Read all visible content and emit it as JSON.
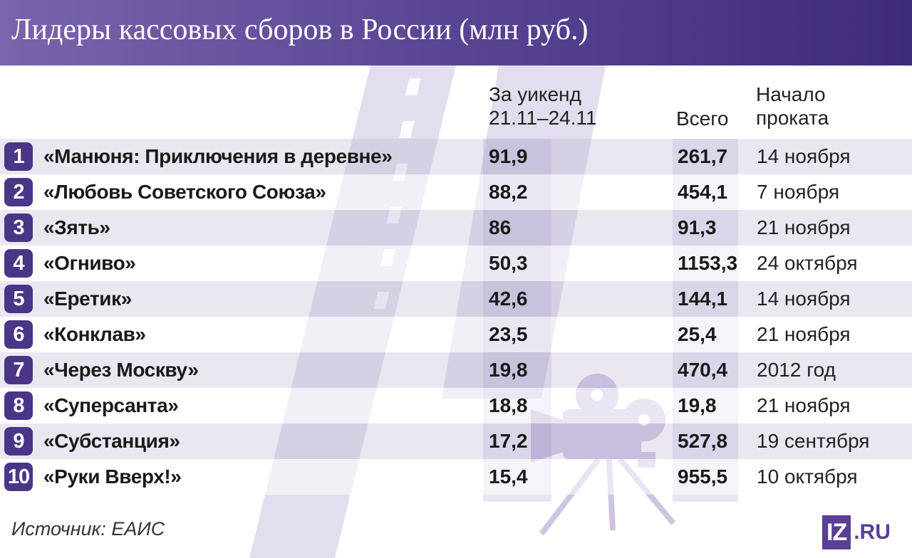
{
  "title": "Лидеры кассовых сборов в России (млн руб.)",
  "columns": {
    "weekend_line1": "За уикенд",
    "weekend_line2": "21.11–24.11",
    "total": "Всего",
    "release_line1": "Начало",
    "release_line2": "проката"
  },
  "rows": [
    {
      "rank": "1",
      "film": "«Манюня: Приключения в деревне»",
      "weekend": "91,9",
      "total": "261,7",
      "release": "14 ноября"
    },
    {
      "rank": "2",
      "film": "«Любовь Советского Союза»",
      "weekend": "88,2",
      "total": "454,1",
      "release": "7 ноября"
    },
    {
      "rank": "3",
      "film": "«Зять»",
      "weekend": "86",
      "total": "91,3",
      "release": "21 ноября"
    },
    {
      "rank": "4",
      "film": "«Огниво»",
      "weekend": "50,3",
      "total": "1153,3",
      "release": "24 октября"
    },
    {
      "rank": "5",
      "film": "«Еретик»",
      "weekend": "42,6",
      "total": "144,1",
      "release": "14 ноября"
    },
    {
      "rank": "6",
      "film": "«Конклав»",
      "weekend": "23,5",
      "total": "25,4",
      "release": "21 ноября"
    },
    {
      "rank": "7",
      "film": "«Через Москву»",
      "weekend": "19,8",
      "total": "470,4",
      "release": "2012 год"
    },
    {
      "rank": "8",
      "film": "«Суперсанта»",
      "weekend": "18,8",
      "total": "19,8",
      "release": "21 ноября"
    },
    {
      "rank": "9",
      "film": "«Субстанция»",
      "weekend": "17,2",
      "total": "527,8",
      "release": "19 сентября"
    },
    {
      "rank": "10",
      "film": "«Руки Вверх!»",
      "weekend": "15,4",
      "total": "955,5",
      "release": "10 октября"
    }
  ],
  "source": "Источник: ЕАИС",
  "logo": {
    "iz": "IZ",
    "ru": ".RU"
  },
  "colors": {
    "header_start": "#7a64ad",
    "header_end": "#3e2b79",
    "rank_badge": "#4a3587",
    "row_shade": "#b9afd2"
  },
  "chart_data": {
    "type": "table",
    "title": "Лидеры кассовых сборов в России (млн руб.)",
    "columns": [
      "",
      "За уикенд 21.11–24.11",
      "Всего",
      "Начало проката"
    ],
    "rows": [
      [
        "«Манюня: Приключения в деревне»",
        91.9,
        261.7,
        "14 ноября"
      ],
      [
        "«Любовь Советского Союза»",
        88.2,
        454.1,
        "7 ноября"
      ],
      [
        "«Зять»",
        86,
        91.3,
        "21 ноября"
      ],
      [
        "«Огниво»",
        50.3,
        1153.3,
        "24 октября"
      ],
      [
        "«Еретик»",
        42.6,
        144.1,
        "14 ноября"
      ],
      [
        "«Конклав»",
        23.5,
        25.4,
        "21 ноября"
      ],
      [
        "«Через Москву»",
        19.8,
        470.4,
        "2012 год"
      ],
      [
        "«Суперсанта»",
        18.8,
        19.8,
        "21 ноября"
      ],
      [
        "«Субстанция»",
        17.2,
        527.8,
        "19 сентября"
      ],
      [
        "«Руки Вверх!»",
        15.4,
        955.5,
        "10 октября"
      ]
    ]
  }
}
